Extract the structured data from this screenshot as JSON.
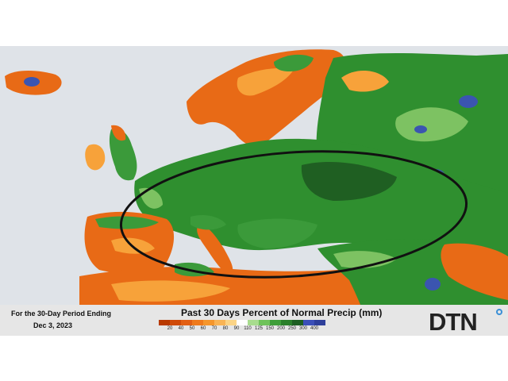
{
  "footer": {
    "period_line1": "For the 30-Day Period Ending",
    "period_line2": "Dec 3, 2023",
    "legend_title": "Past 30 Days Percent of Normal Precip (mm)",
    "legend_ticks": [
      "20",
      "40",
      "50",
      "60",
      "70",
      "80",
      "90",
      "110",
      "125",
      "150",
      "200",
      "250",
      "300",
      "400"
    ],
    "legend_colors": [
      "#b83a00",
      "#cf4b0a",
      "#e25f14",
      "#ef7a1c",
      "#f5962c",
      "#f9b455",
      "#fbd486",
      "#ffffff",
      "#a8dc8e",
      "#6fc25a",
      "#3f9e3a",
      "#2a7f2a",
      "#1d5e22",
      "#3b4fb8",
      "#2e3f9a"
    ]
  },
  "logo": {
    "text": "DTN"
  },
  "colors": {
    "water": "#dfe3e8",
    "dry_orange": "#e86a16",
    "dry_light": "#f7a23a",
    "wet_green": "#2f8f2f",
    "wet_dark": "#1f5f22",
    "wet_light": "#7dc262",
    "very_wet_blue": "#3b55b0",
    "ellipse": "#111111"
  },
  "map_regions": [
    {
      "name": "iceland",
      "class": "dry"
    },
    {
      "name": "scandinavia",
      "class": "dry"
    },
    {
      "name": "finland-northwest-russia",
      "class": "wet"
    },
    {
      "name": "british-isles",
      "class": "mixed"
    },
    {
      "name": "central-europe",
      "class": "wet"
    },
    {
      "name": "eastern-europe-ukraine",
      "class": "wet"
    },
    {
      "name": "iberia",
      "class": "dry"
    },
    {
      "name": "north-africa",
      "class": "dry"
    },
    {
      "name": "turkey-middle-east",
      "class": "wet"
    }
  ]
}
